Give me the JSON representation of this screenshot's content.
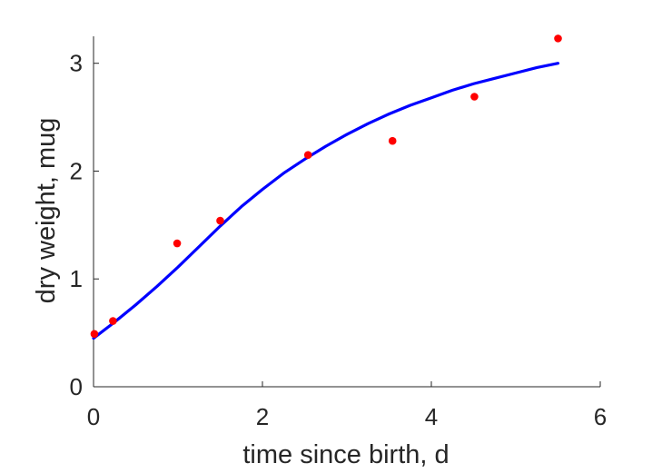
{
  "chart_data": {
    "type": "scatter",
    "xlabel": "time since birth, d",
    "ylabel": "dry weight, mug",
    "xlim": [
      0,
      6
    ],
    "ylim": [
      0,
      3.25
    ],
    "xticks": [
      0,
      2,
      4,
      6
    ],
    "yticks": [
      0,
      1,
      2,
      3
    ],
    "grid": false,
    "series": [
      {
        "kind": "points",
        "color": "#ff0000",
        "x": [
          0.01,
          0.23,
          0.99,
          1.5,
          2.54,
          3.54,
          4.51,
          5.5
        ],
        "y": [
          0.49,
          0.61,
          1.33,
          1.54,
          2.15,
          2.28,
          2.69,
          3.23
        ]
      },
      {
        "kind": "line",
        "color": "#0000ff",
        "x": [
          0,
          0.25,
          0.5,
          0.75,
          1,
          1.25,
          1.5,
          1.75,
          2,
          2.25,
          2.5,
          2.75,
          3,
          3.25,
          3.5,
          3.75,
          4,
          4.25,
          4.5,
          4.75,
          5,
          5.25,
          5.5
        ],
        "y": [
          0.45,
          0.6,
          0.76,
          0.93,
          1.11,
          1.3,
          1.49,
          1.67,
          1.83,
          1.98,
          2.11,
          2.23,
          2.34,
          2.44,
          2.53,
          2.61,
          2.68,
          2.75,
          2.81,
          2.86,
          2.91,
          2.96,
          3.0
        ]
      }
    ]
  }
}
